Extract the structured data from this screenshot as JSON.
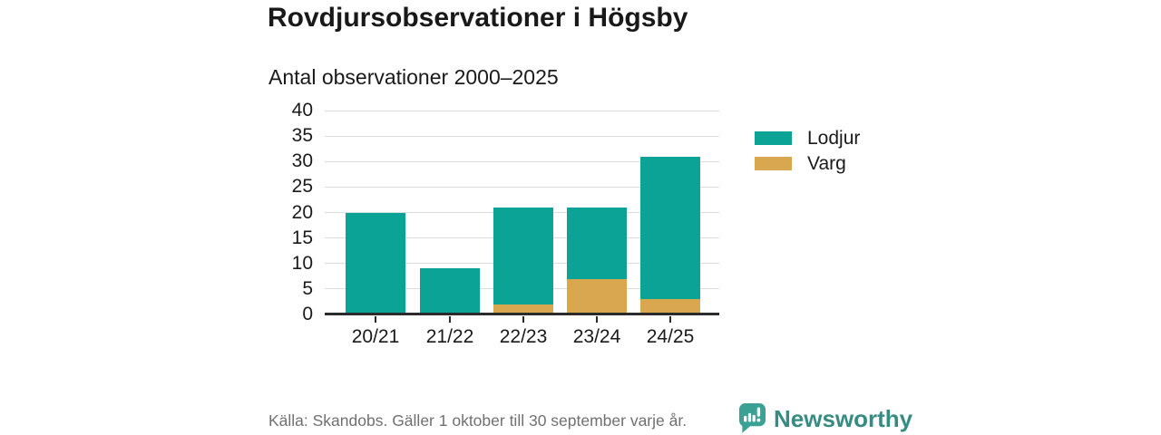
{
  "title": "Rovdjursobservationer i Högsby",
  "subtitle": "Antal observationer 2000–2025",
  "chart_data": {
    "type": "bar",
    "stacked": true,
    "title": "Rovdjursobservationer i Högsby",
    "subtitle": "Antal observationer 2000–2025",
    "categories": [
      "20/21",
      "21/22",
      "22/23",
      "23/24",
      "24/25"
    ],
    "series": [
      {
        "name": "Lodjur",
        "color": "#0AA396",
        "values": [
          20,
          9,
          19,
          14,
          28
        ]
      },
      {
        "name": "Varg",
        "color": "#D9A74F",
        "values": [
          0,
          0,
          2,
          7,
          3
        ]
      }
    ],
    "stack_bottom_to_top": [
      "Varg",
      "Lodjur"
    ],
    "stacked_totals": [
      20,
      9,
      21,
      21,
      31
    ],
    "xlabel": "",
    "ylabel": "",
    "ylim": [
      0,
      40
    ],
    "yticks": [
      0,
      5,
      10,
      15,
      20,
      25,
      30,
      35,
      40
    ],
    "grid": true,
    "legend_position": "right"
  },
  "legend": {
    "items": [
      {
        "label": "Lodjur",
        "color": "#0AA396"
      },
      {
        "label": "Varg",
        "color": "#D9A74F"
      }
    ]
  },
  "footer": {
    "source": "Källa: Skandobs. Gäller 1 oktober till 30 september varje år.",
    "brand": "Newsworthy"
  },
  "icons": {
    "brand_icon": "newsworthy-speech-bubble-chart-icon"
  },
  "colors": {
    "bar_lodjur": "#0AA396",
    "bar_varg": "#D9A74F",
    "gridline": "#DCDCDC",
    "axis": "#2B2B2B",
    "text": "#1A1A1A",
    "muted_text": "#707070",
    "brand_icon": "#3BA195",
    "brand_text": "#368C81",
    "background": "#FFFFFF"
  }
}
